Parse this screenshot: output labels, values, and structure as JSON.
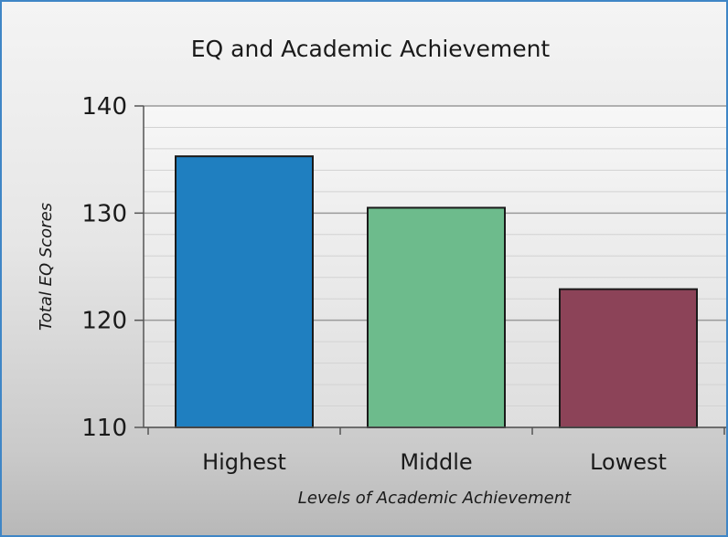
{
  "chart_data": {
    "type": "bar",
    "title": "EQ and Academic Achievement",
    "xlabel": "Levels of Academic Achievement",
    "ylabel": "Total EQ Scores",
    "categories": [
      "Highest",
      "Middle",
      "Lowest"
    ],
    "values": [
      135.3,
      130.5,
      122.9
    ],
    "ylim": [
      110,
      140
    ],
    "yticks": [
      110,
      120,
      130,
      140
    ],
    "grid": true,
    "colors": [
      "#1f7fc0",
      "#6dbb8c",
      "#8c4358"
    ]
  }
}
